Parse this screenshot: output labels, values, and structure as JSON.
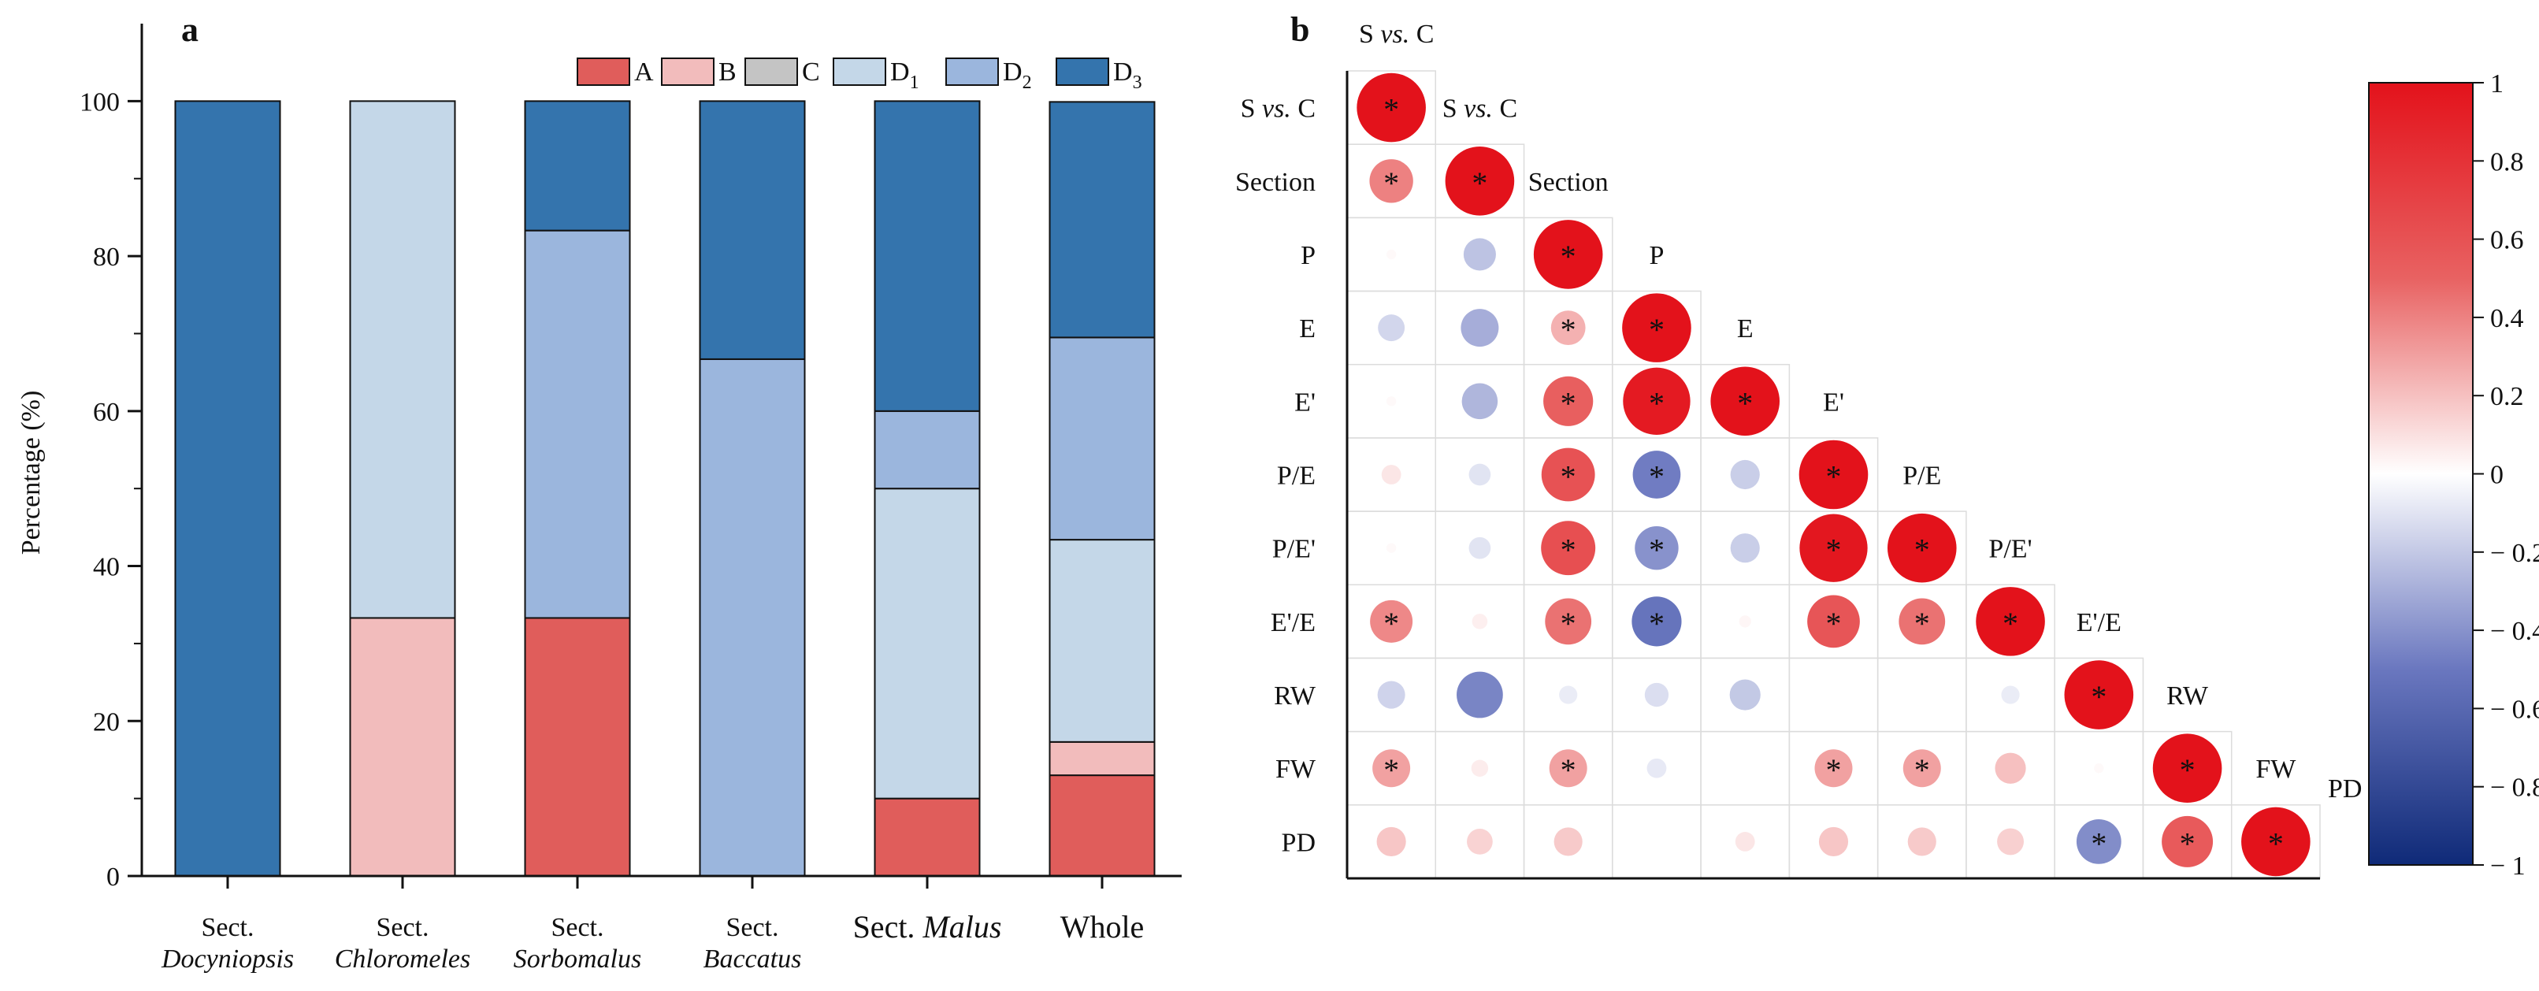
{
  "chart_data": [
    {
      "panel_label": "a",
      "type": "bar",
      "stacked": true,
      "ylabel": "Percentage (%)",
      "xlabel": "",
      "ylim": [
        0,
        110
      ],
      "yticks": [
        0,
        20,
        40,
        60,
        80,
        100
      ],
      "legend_position": "top-right",
      "categories": [
        {
          "prefix": "Sect.",
          "name": "Docyniopsis",
          "italic": true,
          "inline": false
        },
        {
          "prefix": "Sect.",
          "name": "Chloromeles",
          "italic": true,
          "inline": false
        },
        {
          "prefix": "Sect.",
          "name": "Sorbomalus",
          "italic": true,
          "inline": false
        },
        {
          "prefix": "Sect.",
          "name": "Baccatus",
          "italic": true,
          "inline": false
        },
        {
          "prefix": "Sect.",
          "name": "Malus",
          "italic": true,
          "inline": true
        },
        {
          "prefix": "",
          "name": "Whole",
          "italic": false,
          "inline": true
        }
      ],
      "series": [
        {
          "name": "A",
          "sub": "",
          "color": "#e05d5b",
          "values": [
            0,
            0,
            33.3,
            0,
            10,
            13
          ]
        },
        {
          "name": "B",
          "sub": "",
          "color": "#f2bcbc",
          "values": [
            0,
            33.3,
            0,
            0,
            0,
            4.3
          ]
        },
        {
          "name": "C",
          "sub": "",
          "color": "#c4c4c4",
          "values": [
            0,
            0,
            0,
            0,
            0,
            0
          ]
        },
        {
          "name": "D",
          "sub": "1",
          "color": "#c4d7e8",
          "values": [
            0,
            66.7,
            0,
            0,
            40,
            26.1
          ]
        },
        {
          "name": "D",
          "sub": "2",
          "color": "#9bb6dd",
          "values": [
            0,
            0,
            50,
            66.7,
            10,
            26.1
          ]
        },
        {
          "name": "D",
          "sub": "3",
          "color": "#3474ad",
          "values": [
            100,
            0,
            16.7,
            33.3,
            40,
            30.4
          ]
        }
      ]
    },
    {
      "panel_label": "b",
      "type": "heatmap",
      "subtype": "lower-triangle correlation matrix (circle size and colour = correlation)",
      "corner_label": {
        "pre": "S ",
        "it": "vs.",
        "post": " C"
      },
      "variables": [
        {
          "pre": "S ",
          "it": "vs.",
          "post": " C"
        },
        {
          "pre": "Section",
          "it": "",
          "post": ""
        },
        {
          "pre": "P",
          "it": "",
          "post": ""
        },
        {
          "pre": "E",
          "it": "",
          "post": ""
        },
        {
          "pre": "E'",
          "it": "",
          "post": ""
        },
        {
          "pre": "P/E",
          "it": "",
          "post": ""
        },
        {
          "pre": "P/E'",
          "it": "",
          "post": ""
        },
        {
          "pre": "E'/E",
          "it": "",
          "post": ""
        },
        {
          "pre": "RW",
          "it": "",
          "post": ""
        },
        {
          "pre": "FW",
          "it": "",
          "post": ""
        },
        {
          "pre": "PD",
          "it": "",
          "post": ""
        }
      ],
      "matrix": [
        [
          1
        ],
        [
          0.4,
          1
        ],
        [
          0.02,
          -0.22,
          1
        ],
        [
          -0.15,
          -0.3,
          0.25,
          1
        ],
        [
          0.02,
          -0.27,
          0.52,
          0.95,
          1
        ],
        [
          0.08,
          -0.1,
          0.6,
          -0.48,
          -0.18,
          1
        ],
        [
          0.02,
          -0.1,
          0.62,
          -0.4,
          -0.18,
          0.97,
          1
        ],
        [
          0.38,
          0.05,
          0.45,
          -0.52,
          0.03,
          0.58,
          0.45,
          1
        ],
        [
          -0.16,
          -0.45,
          -0.07,
          -0.12,
          -0.2,
          0,
          0,
          -0.07,
          1
        ],
        [
          0.3,
          0.06,
          0.3,
          -0.08,
          0,
          0.3,
          0.3,
          0.2,
          0.02,
          1
        ],
        [
          0.18,
          0.14,
          0.17,
          0,
          0.08,
          0.18,
          0.17,
          0.15,
          -0.42,
          0.55,
          1
        ]
      ],
      "significant": [
        [
          true
        ],
        [
          true,
          true
        ],
        [
          false,
          false,
          true
        ],
        [
          false,
          false,
          true,
          true
        ],
        [
          false,
          false,
          true,
          true,
          true
        ],
        [
          false,
          false,
          true,
          true,
          false,
          true
        ],
        [
          false,
          false,
          true,
          true,
          false,
          true,
          true
        ],
        [
          true,
          false,
          true,
          true,
          false,
          true,
          true,
          true
        ],
        [
          false,
          false,
          false,
          false,
          false,
          false,
          false,
          false,
          true
        ],
        [
          true,
          false,
          true,
          false,
          false,
          true,
          true,
          false,
          false,
          true
        ],
        [
          false,
          false,
          false,
          false,
          false,
          false,
          false,
          false,
          true,
          true,
          true
        ]
      ],
      "significance_marker": "*",
      "colorbar": {
        "range": [
          -1,
          1
        ],
        "ticks": [
          1,
          0.8,
          0.6,
          0.4,
          0.2,
          0,
          -0.2,
          -0.4,
          -0.6,
          -0.8,
          -1
        ],
        "tick_labels": [
          "1",
          "0.8",
          "0.6",
          "0.4",
          "0.2",
          "0",
          "− 0.2",
          "− 0.4",
          "− 0.6",
          "− 0.8",
          "− 1"
        ],
        "colors": [
          "#0f2a78",
          "#6a77bf",
          "#ffffff",
          "#e86262",
          "#e3121b"
        ]
      }
    }
  ]
}
